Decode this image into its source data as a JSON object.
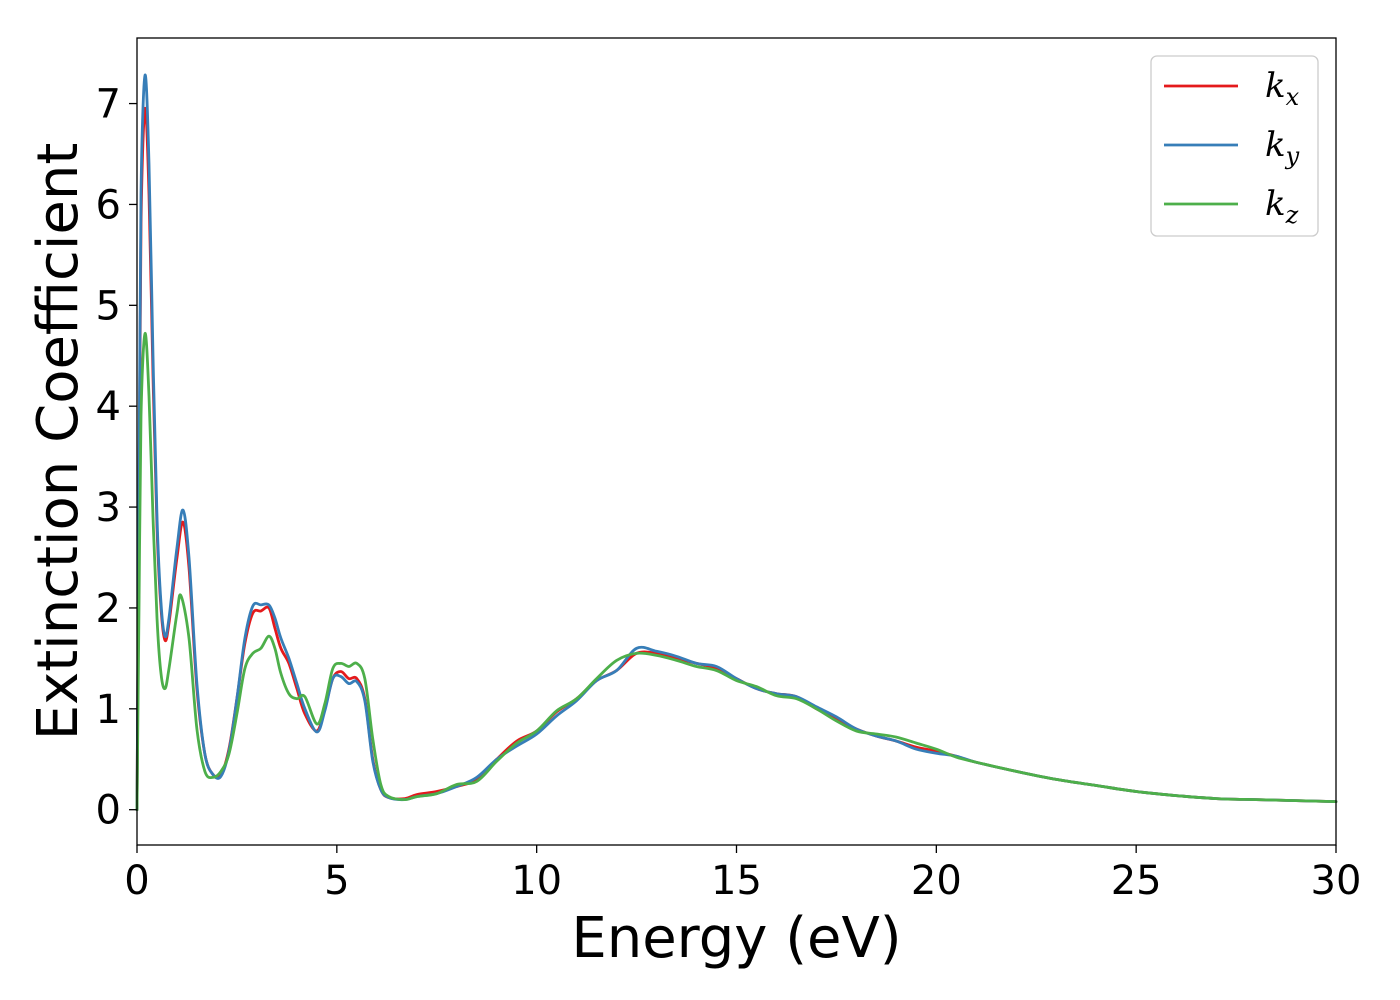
{
  "chart_data": {
    "type": "line",
    "title": "",
    "xlabel": "Energy (eV)",
    "ylabel": "Extinction Coefficient",
    "xlim": [
      0,
      30
    ],
    "ylim": [
      -0.35,
      7.65
    ],
    "xticks": [
      0,
      5,
      10,
      15,
      20,
      25,
      30
    ],
    "yticks": [
      0,
      1,
      2,
      3,
      4,
      5,
      6,
      7
    ],
    "grid": false,
    "legend": "top-right",
    "series": [
      {
        "name": "k",
        "sub": "x",
        "color": "#e41a1c",
        "x": [
          0,
          0.05,
          0.1,
          0.2,
          0.3,
          0.4,
          0.5,
          0.6,
          0.7,
          0.8,
          1.0,
          1.15,
          1.3,
          1.5,
          1.7,
          1.9,
          2.1,
          2.3,
          2.5,
          2.7,
          2.9,
          3.1,
          3.3,
          3.45,
          3.6,
          3.8,
          4.0,
          4.2,
          4.5,
          4.7,
          4.9,
          5.1,
          5.3,
          5.5,
          5.7,
          5.9,
          6.1,
          6.3,
          6.7,
          7.0,
          7.5,
          8.0,
          8.5,
          9.0,
          9.5,
          10.0,
          10.5,
          11.0,
          11.5,
          12.0,
          12.5,
          13.0,
          13.5,
          14.0,
          14.5,
          15.0,
          15.5,
          16.0,
          16.5,
          17.0,
          17.5,
          18.0,
          18.5,
          19.0,
          19.5,
          20.0,
          20.5,
          21.0,
          22.0,
          23.0,
          24.0,
          25.0,
          26.0,
          27.0,
          28.0,
          29.0,
          30.0
        ],
        "y": [
          0,
          3.0,
          5.8,
          6.95,
          6.1,
          4.3,
          2.8,
          2.0,
          1.68,
          1.85,
          2.5,
          2.85,
          2.4,
          1.2,
          0.55,
          0.35,
          0.35,
          0.6,
          1.1,
          1.65,
          1.95,
          1.97,
          2.0,
          1.8,
          1.6,
          1.45,
          1.2,
          0.95,
          0.78,
          1.0,
          1.3,
          1.37,
          1.3,
          1.3,
          1.1,
          0.5,
          0.2,
          0.12,
          0.11,
          0.15,
          0.18,
          0.23,
          0.3,
          0.5,
          0.68,
          0.78,
          0.97,
          1.1,
          1.28,
          1.38,
          1.55,
          1.55,
          1.5,
          1.45,
          1.4,
          1.3,
          1.2,
          1.15,
          1.12,
          1.0,
          0.9,
          0.8,
          0.73,
          0.68,
          0.62,
          0.58,
          0.53,
          0.47,
          0.38,
          0.3,
          0.24,
          0.18,
          0.14,
          0.11,
          0.1,
          0.09,
          0.08
        ]
      },
      {
        "name": "k",
        "sub": "y",
        "color": "#377eb8",
        "x": [
          0,
          0.05,
          0.1,
          0.2,
          0.3,
          0.4,
          0.5,
          0.6,
          0.7,
          0.8,
          1.0,
          1.15,
          1.3,
          1.5,
          1.7,
          1.9,
          2.1,
          2.3,
          2.5,
          2.7,
          2.9,
          3.1,
          3.3,
          3.45,
          3.6,
          3.8,
          4.0,
          4.2,
          4.5,
          4.7,
          4.9,
          5.1,
          5.3,
          5.5,
          5.7,
          5.9,
          6.1,
          6.3,
          6.7,
          7.0,
          7.5,
          8.0,
          8.5,
          9.0,
          9.5,
          10.0,
          10.5,
          11.0,
          11.5,
          12.0,
          12.5,
          13.0,
          13.5,
          14.0,
          14.5,
          15.0,
          15.5,
          16.0,
          16.5,
          17.0,
          17.5,
          18.0,
          18.5,
          19.0,
          19.5,
          20.0,
          20.5,
          21.0,
          22.0,
          23.0,
          24.0,
          25.0,
          26.0,
          27.0,
          28.0,
          29.0,
          30.0
        ],
        "y": [
          0,
          3.2,
          6.1,
          7.28,
          6.4,
          4.5,
          2.9,
          2.05,
          1.72,
          1.9,
          2.6,
          2.97,
          2.5,
          1.25,
          0.55,
          0.35,
          0.33,
          0.58,
          1.1,
          1.7,
          2.02,
          2.03,
          2.03,
          1.9,
          1.7,
          1.5,
          1.25,
          1.0,
          0.77,
          0.98,
          1.3,
          1.32,
          1.25,
          1.27,
          1.08,
          0.48,
          0.2,
          0.12,
          0.1,
          0.13,
          0.16,
          0.23,
          0.32,
          0.5,
          0.63,
          0.75,
          0.93,
          1.08,
          1.28,
          1.38,
          1.6,
          1.57,
          1.52,
          1.45,
          1.42,
          1.3,
          1.2,
          1.15,
          1.12,
          1.02,
          0.92,
          0.8,
          0.73,
          0.68,
          0.6,
          0.56,
          0.53,
          0.47,
          0.38,
          0.3,
          0.24,
          0.18,
          0.14,
          0.11,
          0.1,
          0.09,
          0.08
        ]
      },
      {
        "name": "k",
        "sub": "z",
        "color": "#4daf4a",
        "x": [
          0,
          0.05,
          0.1,
          0.2,
          0.3,
          0.4,
          0.5,
          0.6,
          0.7,
          0.8,
          1.0,
          1.1,
          1.3,
          1.5,
          1.7,
          1.9,
          2.1,
          2.3,
          2.5,
          2.7,
          2.9,
          3.1,
          3.3,
          3.45,
          3.6,
          3.8,
          4.0,
          4.2,
          4.5,
          4.7,
          4.9,
          5.1,
          5.3,
          5.5,
          5.7,
          5.9,
          6.1,
          6.3,
          6.7,
          7.0,
          7.5,
          8.0,
          8.5,
          9.0,
          9.5,
          10.0,
          10.5,
          11.0,
          11.5,
          12.0,
          12.5,
          13.0,
          13.5,
          14.0,
          14.5,
          15.0,
          15.5,
          16.0,
          16.5,
          17.0,
          17.5,
          18.0,
          18.5,
          19.0,
          19.5,
          20.0,
          20.5,
          21.0,
          22.0,
          23.0,
          24.0,
          25.0,
          26.0,
          27.0,
          28.0,
          29.0,
          30.0
        ],
        "y": [
          0,
          2.0,
          3.9,
          4.72,
          4.1,
          2.9,
          1.9,
          1.35,
          1.2,
          1.4,
          1.95,
          2.12,
          1.7,
          0.8,
          0.38,
          0.32,
          0.38,
          0.55,
          0.95,
          1.4,
          1.55,
          1.6,
          1.72,
          1.6,
          1.35,
          1.15,
          1.1,
          1.12,
          0.85,
          1.05,
          1.4,
          1.45,
          1.42,
          1.45,
          1.3,
          0.7,
          0.25,
          0.13,
          0.1,
          0.13,
          0.16,
          0.25,
          0.28,
          0.48,
          0.66,
          0.78,
          0.98,
          1.1,
          1.3,
          1.48,
          1.55,
          1.53,
          1.48,
          1.42,
          1.38,
          1.28,
          1.22,
          1.13,
          1.1,
          1.0,
          0.88,
          0.78,
          0.75,
          0.72,
          0.66,
          0.6,
          0.52,
          0.47,
          0.38,
          0.3,
          0.24,
          0.18,
          0.14,
          0.11,
          0.1,
          0.09,
          0.08
        ]
      }
    ]
  }
}
